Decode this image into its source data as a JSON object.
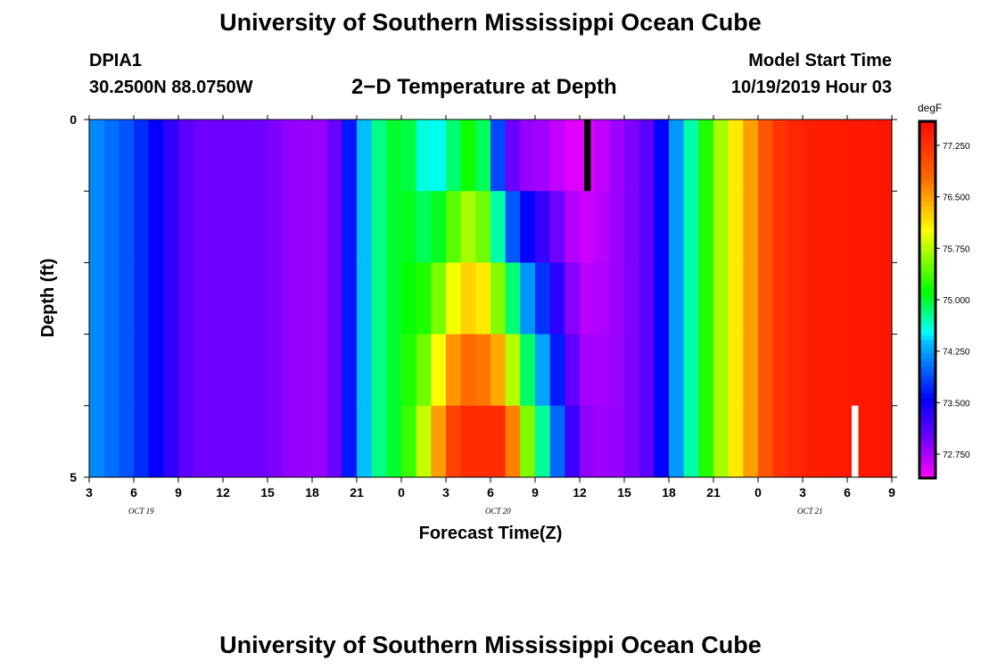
{
  "header": {
    "title": "University of Southern Mississippi Ocean Cube",
    "station_id": "DPIA1",
    "station_coords": "30.2500N 88.0750W",
    "plot_title": "2−D Temperature at Depth",
    "model_label": "Model Start Time",
    "model_time": "10/19/2019 Hour 03"
  },
  "footer": {
    "title": "University of Southern Mississippi Ocean Cube"
  },
  "chart_data": {
    "type": "heatmap",
    "title": "2−D Temperature at Depth",
    "xlabel": "Forecast Time(Z)",
    "ylabel": "Depth (ft)",
    "x_tick_labels": [
      "3",
      "6",
      "9",
      "12",
      "15",
      "18",
      "21",
      "0",
      "3",
      "6",
      "9",
      "12",
      "15",
      "18",
      "21",
      "0",
      "3",
      "6",
      "9"
    ],
    "day_labels": [
      {
        "text": "OCT 19",
        "hour_index": 3
      },
      {
        "text": "OCT 20",
        "hour_index": 27
      },
      {
        "text": "OCT 21",
        "hour_index": 48
      }
    ],
    "y_tick_labels": [
      "0",
      "5"
    ],
    "ylim": [
      0,
      5
    ],
    "x_hour_range": [
      0,
      54
    ],
    "depth_layers": 5,
    "colorbar": {
      "unit": "degF",
      "min": 72.4,
      "max": 77.6,
      "tick_labels": [
        "77.250",
        "76.500",
        "75.750",
        "75.000",
        "74.250",
        "73.500",
        "72.750"
      ],
      "tick_values": [
        77.25,
        76.5,
        75.75,
        75.0,
        74.25,
        73.5,
        72.75
      ]
    },
    "missing_marker": {
      "color": "#ffffff",
      "hour_index": 51,
      "layer": 4
    },
    "surface_marker": {
      "color": "#000000",
      "hour_index": 33,
      "layer": 0
    },
    "time_profile_surface": [
      [
        0,
        74.2
      ],
      [
        3,
        73.85
      ],
      [
        6,
        73.2
      ],
      [
        7,
        73.0
      ],
      [
        12,
        73.0
      ],
      [
        13,
        72.85
      ],
      [
        16,
        72.8
      ],
      [
        17,
        73.25
      ],
      [
        18,
        74.05
      ],
      [
        19,
        74.7
      ],
      [
        21,
        75.1
      ],
      [
        22,
        74.8
      ],
      [
        23,
        74.4
      ],
      [
        25,
        75.0
      ],
      [
        26,
        75.3
      ],
      [
        27,
        74.5
      ],
      [
        28,
        73.2
      ],
      [
        29,
        72.85
      ],
      [
        30,
        72.8
      ],
      [
        31,
        72.75
      ],
      [
        32,
        72.55
      ],
      [
        33,
        72.5
      ],
      [
        34,
        72.55
      ],
      [
        35,
        72.75
      ],
      [
        36,
        72.85
      ],
      [
        37,
        73.0
      ],
      [
        38,
        73.2
      ],
      [
        39,
        73.9
      ],
      [
        40,
        74.5
      ],
      [
        41,
        74.95
      ],
      [
        42,
        75.5
      ],
      [
        43,
        75.9
      ],
      [
        44,
        76.3
      ],
      [
        45,
        76.7
      ],
      [
        46,
        77.2
      ],
      [
        48,
        77.4
      ],
      [
        51,
        77.45
      ],
      [
        54,
        77.5
      ]
    ],
    "time_profile_deep": [
      [
        0,
        74.2
      ],
      [
        3,
        73.85
      ],
      [
        6,
        73.2
      ],
      [
        7,
        73.0
      ],
      [
        12,
        73.0
      ],
      [
        13,
        72.85
      ],
      [
        16,
        72.8
      ],
      [
        17,
        73.25
      ],
      [
        18,
        74.05
      ],
      [
        19,
        74.7
      ],
      [
        21,
        75.1
      ],
      [
        22,
        75.5
      ],
      [
        23,
        76.1
      ],
      [
        24,
        76.9
      ],
      [
        25,
        77.3
      ],
      [
        28,
        77.3
      ],
      [
        29,
        76.0
      ],
      [
        30,
        75.1
      ],
      [
        31,
        74.4
      ],
      [
        32,
        73.6
      ],
      [
        33,
        72.9
      ],
      [
        34,
        72.8
      ],
      [
        35,
        72.8
      ],
      [
        36,
        72.85
      ],
      [
        37,
        73.0
      ],
      [
        38,
        73.2
      ],
      [
        39,
        73.9
      ],
      [
        40,
        74.5
      ],
      [
        41,
        74.95
      ],
      [
        42,
        75.5
      ],
      [
        43,
        75.9
      ],
      [
        44,
        76.3
      ],
      [
        45,
        76.7
      ],
      [
        46,
        77.2
      ],
      [
        48,
        77.4
      ],
      [
        51,
        77.45
      ],
      [
        54,
        77.5
      ]
    ]
  }
}
